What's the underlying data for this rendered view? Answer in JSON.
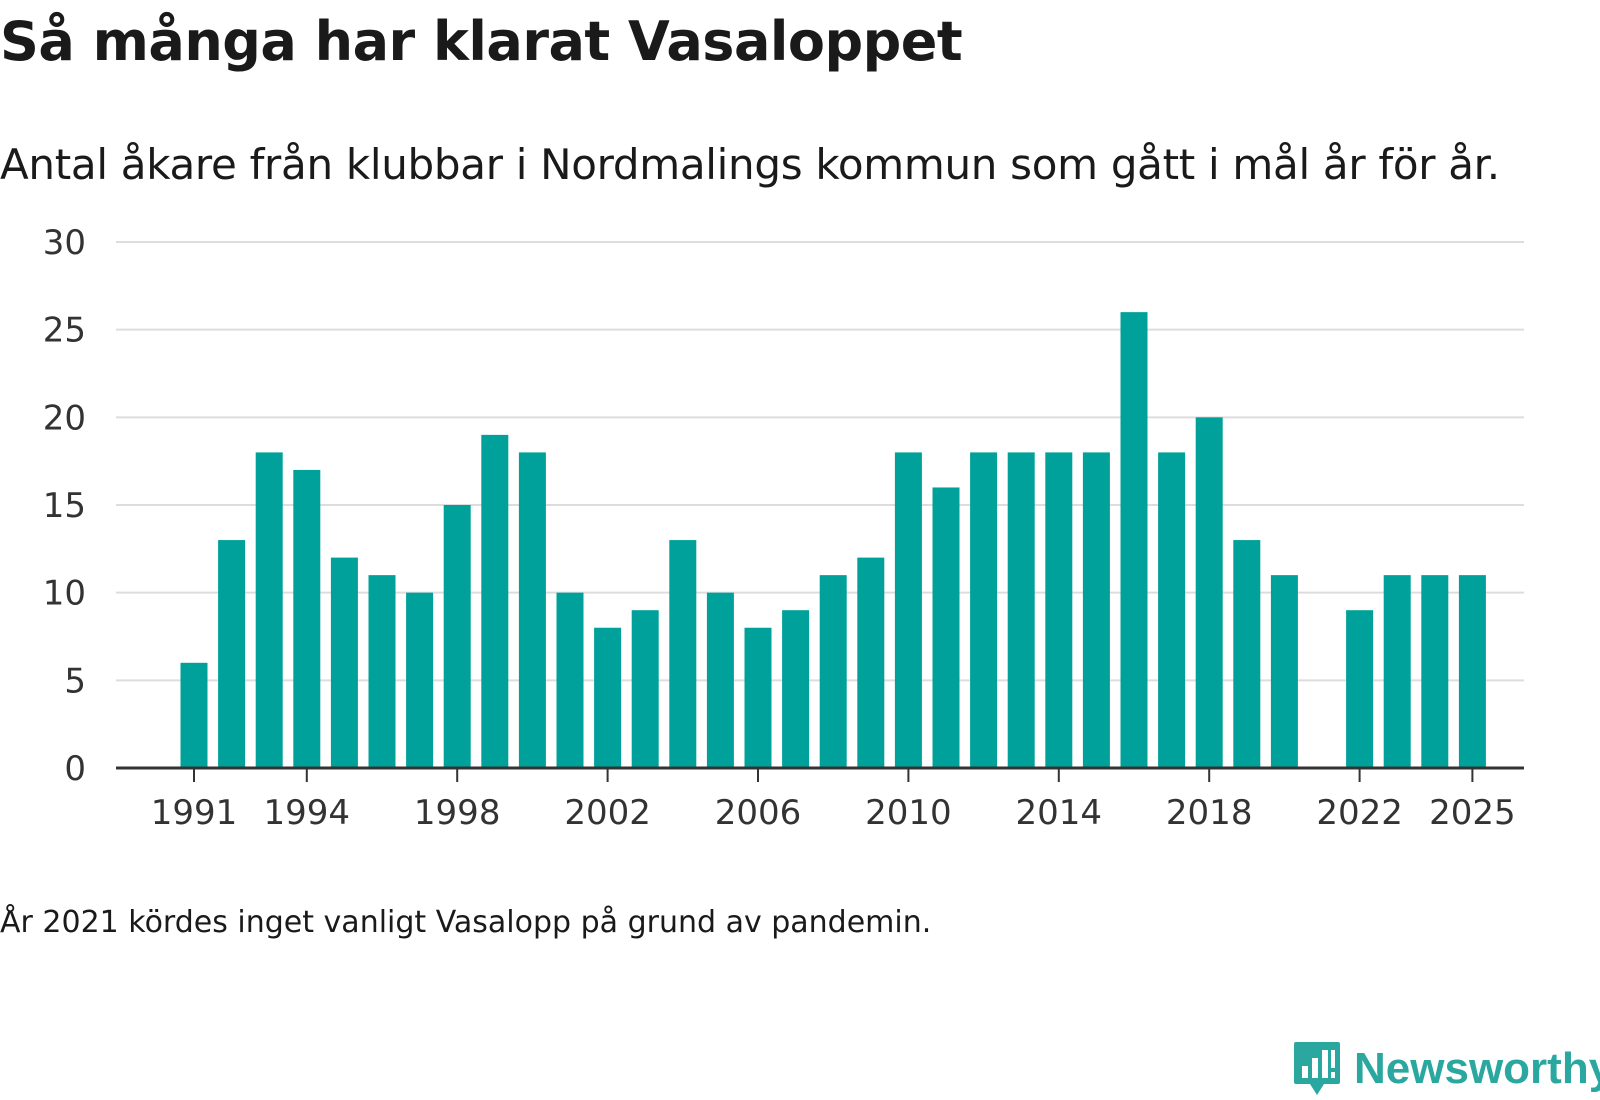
{
  "title": "Så många har klarat Vasaloppet",
  "subtitle": "Antal åkare från klubbar i Nordmalings kommun som gått i mål år för år.",
  "footnote": "År 2021 kördes inget vanligt Vasalopp på grund av pandemin.",
  "brand": {
    "name": "Newsworthy",
    "icon": "newsworthy-logo-icon",
    "color": "#2aa8a0"
  },
  "colors": {
    "bar": "#00a19a",
    "grid": "#dddddd",
    "axis": "#333333"
  },
  "chart_data": {
    "type": "bar",
    "title": "Så många har klarat Vasaloppet",
    "xlabel": "",
    "ylabel": "",
    "categories": [
      1991,
      1992,
      1993,
      1994,
      1995,
      1996,
      1997,
      1998,
      1999,
      2000,
      2001,
      2002,
      2003,
      2004,
      2005,
      2006,
      2007,
      2008,
      2009,
      2010,
      2011,
      2012,
      2013,
      2014,
      2015,
      2016,
      2017,
      2018,
      2019,
      2020,
      2021,
      2022,
      2023,
      2024,
      2025
    ],
    "values": [
      6,
      13,
      18,
      17,
      12,
      11,
      10,
      15,
      19,
      18,
      10,
      8,
      9,
      13,
      10,
      8,
      9,
      11,
      12,
      18,
      16,
      18,
      18,
      18,
      18,
      26,
      18,
      20,
      13,
      11,
      null,
      9,
      11,
      11,
      11
    ],
    "ylim": [
      0,
      30
    ],
    "yticks": [
      0,
      5,
      10,
      15,
      20,
      25,
      30
    ],
    "xticks": [
      1991,
      1994,
      1998,
      2002,
      2006,
      2010,
      2014,
      2018,
      2022,
      2025
    ],
    "grid": true
  }
}
